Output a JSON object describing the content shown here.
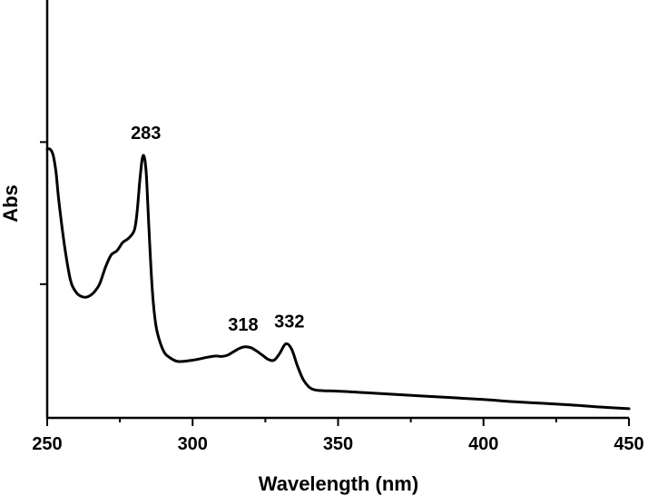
{
  "chart_data": {
    "type": "line",
    "title": "",
    "xlabel": "Wavelength (nm)",
    "ylabel": "Abs",
    "xlim": [
      250,
      450
    ],
    "ylim": [
      0,
      1
    ],
    "xticks": [
      250,
      300,
      350,
      400,
      450
    ],
    "yticks_labeled": false,
    "grid": false,
    "legend": "none",
    "line_color": "#000000",
    "series": [
      {
        "x": [
          250,
          251,
          252,
          253,
          254,
          256,
          258,
          260,
          262,
          264,
          266,
          268,
          270,
          272,
          274,
          276,
          278,
          280,
          281,
          282,
          283,
          284,
          285,
          286,
          287,
          288,
          290,
          292,
          295,
          300,
          305,
          308,
          310,
          312,
          314,
          316,
          318,
          320,
          322,
          324,
          326,
          328,
          330,
          332,
          334,
          336,
          338,
          340,
          342,
          345,
          350,
          360,
          370,
          380,
          390,
          400,
          410,
          420,
          430,
          440,
          450
        ],
        "y": [
          0.643,
          0.643,
          0.63,
          0.59,
          0.52,
          0.41,
          0.33,
          0.3,
          0.29,
          0.29,
          0.3,
          0.32,
          0.36,
          0.39,
          0.4,
          0.42,
          0.43,
          0.45,
          0.5,
          0.58,
          0.628,
          0.59,
          0.45,
          0.32,
          0.24,
          0.2,
          0.16,
          0.145,
          0.135,
          0.138,
          0.145,
          0.148,
          0.147,
          0.15,
          0.158,
          0.166,
          0.17,
          0.168,
          0.16,
          0.15,
          0.14,
          0.138,
          0.155,
          0.177,
          0.165,
          0.125,
          0.092,
          0.074,
          0.067,
          0.065,
          0.064,
          0.06,
          0.056,
          0.052,
          0.048,
          0.044,
          0.039,
          0.035,
          0.031,
          0.026,
          0.022
        ]
      }
    ],
    "annotations": [
      {
        "text": "283",
        "x": 283
      },
      {
        "text": "318",
        "x": 318
      },
      {
        "text": "332",
        "x": 332
      }
    ]
  }
}
